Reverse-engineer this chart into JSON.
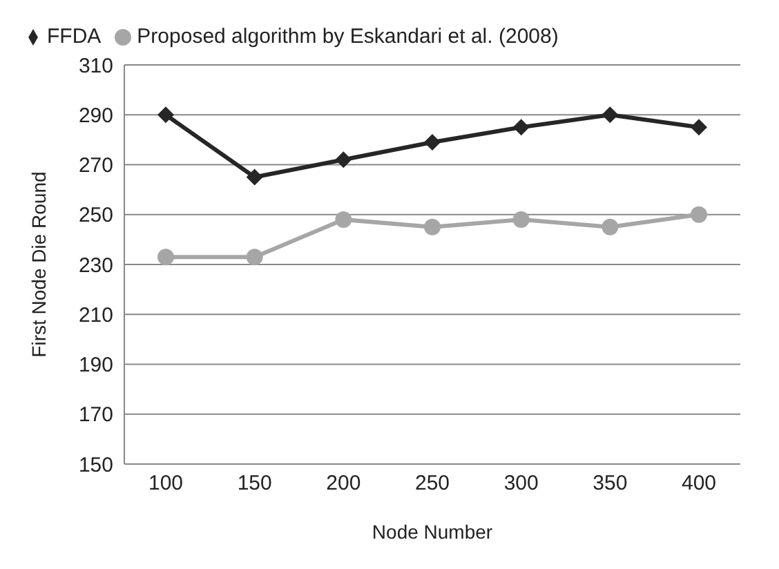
{
  "chart_data": {
    "type": "line",
    "xlabel": "Node Number",
    "ylabel": "First Node Die Round",
    "categories": [
      "100",
      "150",
      "200",
      "250",
      "300",
      "350",
      "400"
    ],
    "series": [
      {
        "name": "FFDA",
        "color": "#262626",
        "marker": "diamond",
        "values": [
          290,
          265,
          272,
          279,
          285,
          290,
          285
        ]
      },
      {
        "name": "Proposed algorithm by Eskandari et al. (2008)",
        "color": "#a6a6a6",
        "marker": "circle",
        "values": [
          233,
          233,
          248,
          245,
          248,
          245,
          250
        ]
      }
    ],
    "ylim": [
      150,
      310
    ],
    "yticks": [
      150,
      170,
      190,
      210,
      230,
      250,
      270,
      290,
      310
    ],
    "grid": "y",
    "legend": "top left",
    "line_style": "solid"
  }
}
